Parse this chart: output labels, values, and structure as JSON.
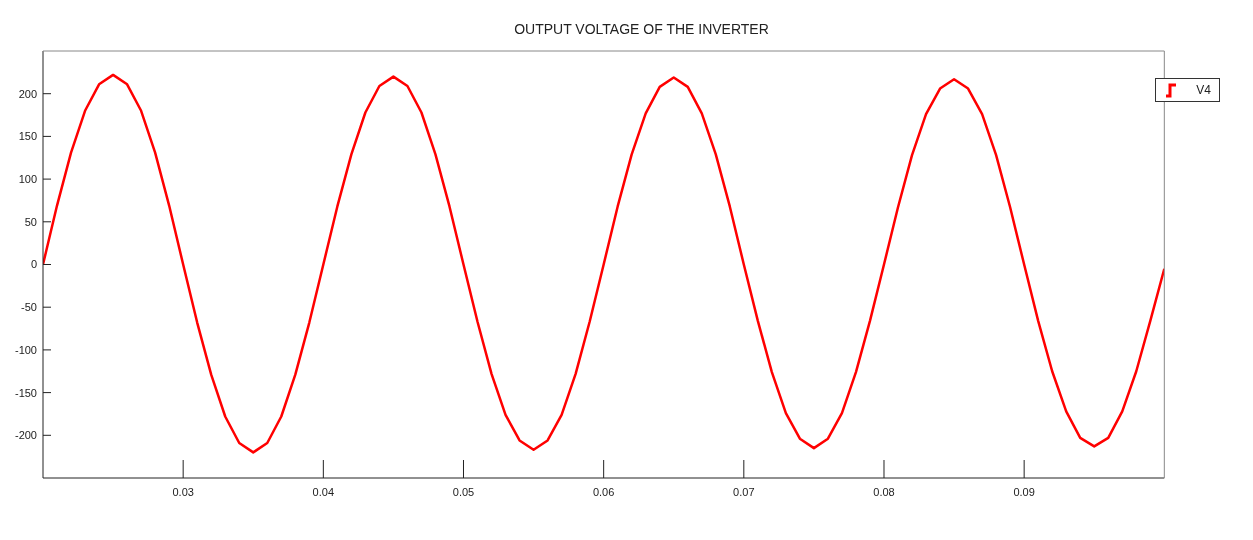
{
  "chart_data": {
    "type": "line",
    "title": "OUTPUT VOLTAGE OF THE INVERTER",
    "x": [
      0.02,
      0.021,
      0.022,
      0.023,
      0.024,
      0.025,
      0.026,
      0.027,
      0.028,
      0.029,
      0.03,
      0.031,
      0.032,
      0.033,
      0.034,
      0.035,
      0.036,
      0.037,
      0.038,
      0.039,
      0.04,
      0.041,
      0.042,
      0.043,
      0.044,
      0.045,
      0.046,
      0.047,
      0.048,
      0.049,
      0.05,
      0.051,
      0.052,
      0.053,
      0.054,
      0.055,
      0.056,
      0.057,
      0.058,
      0.059,
      0.06,
      0.061,
      0.062,
      0.063,
      0.064,
      0.065,
      0.066,
      0.067,
      0.068,
      0.069,
      0.07,
      0.071,
      0.072,
      0.073,
      0.074,
      0.075,
      0.076,
      0.077,
      0.078,
      0.079,
      0.08,
      0.081,
      0.082,
      0.083,
      0.084,
      0.085,
      0.086,
      0.087,
      0.088,
      0.089,
      0.09,
      0.091,
      0.092,
      0.093,
      0.094,
      0.095,
      0.096,
      0.097,
      0.098,
      0.099,
      0.1
    ],
    "series": [
      {
        "name": "V4",
        "color": "#ff0000",
        "values": [
          0,
          69,
          131,
          180,
          211,
          222,
          211,
          180,
          131,
          69,
          0,
          -68,
          -129,
          -178,
          -209,
          -220,
          -209,
          -178,
          -129,
          -68,
          0,
          68,
          129,
          178,
          209,
          220,
          209,
          178,
          129,
          68,
          0,
          -67,
          -128,
          -176,
          -206,
          -217,
          -206,
          -176,
          -128,
          -67,
          0,
          68,
          129,
          177,
          208,
          219,
          208,
          177,
          129,
          68,
          0,
          -66,
          -126,
          -174,
          -204,
          -215,
          -204,
          -174,
          -126,
          -66,
          0,
          67,
          128,
          176,
          206,
          217,
          206,
          176,
          128,
          67,
          0,
          -66,
          -125,
          -172,
          -203,
          -213,
          -203,
          -172,
          -125,
          -66,
          -5
        ]
      }
    ],
    "xlim": [
      0.02,
      0.1
    ],
    "xticks": [
      0.03,
      0.04,
      0.05,
      0.06,
      0.07,
      0.08,
      0.09
    ],
    "ylim": [
      -250,
      250
    ],
    "yticks": [
      -200,
      -150,
      -100,
      -50,
      0,
      50,
      100,
      150,
      200
    ],
    "legend": "top right",
    "marker": "none",
    "line_style": "solid"
  }
}
